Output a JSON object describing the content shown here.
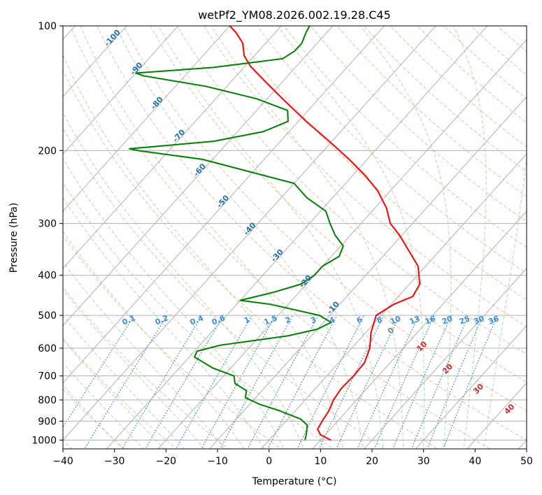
{
  "chart_data": {
    "type": "line",
    "chart_kind": "skew-t log-p",
    "title": "wetPf2_YM08.2026.002.19.28.C45",
    "xlabel": "Temperature (°C)",
    "ylabel": "Pressure (hPa)",
    "xlim": [
      -40,
      50
    ],
    "ylim": [
      1050,
      100
    ],
    "y_scale": "log",
    "grid": true,
    "x_ticks": [
      -40,
      -30,
      -20,
      -10,
      0,
      10,
      20,
      30,
      40,
      50
    ],
    "y_ticks": [
      100,
      200,
      300,
      400,
      500,
      600,
      700,
      800,
      900,
      1000
    ],
    "colors": {
      "temperature": "#ff0000",
      "dewpoint": "#008000",
      "isotherm": "#b0b0b0",
      "dry_adiabat": "#f4a582",
      "moist_adiabat": "#a6d9a6",
      "mixing_ratio": "#1f78d4",
      "isotherm_label": "#2171b5",
      "mixing_label": "#3a8fe0",
      "lcl_label_red": "#d62728",
      "lcl_label_grey": "#808080"
    },
    "series": [
      {
        "key": "temperature",
        "points": [
          [
            12.0,
            1000
          ],
          [
            9.0,
            970
          ],
          [
            7.5,
            940
          ],
          [
            7.0,
            900
          ],
          [
            6.5,
            850
          ],
          [
            5.5,
            800
          ],
          [
            5.0,
            750
          ],
          [
            5.2,
            700
          ],
          [
            5.0,
            650
          ],
          [
            3.5,
            600
          ],
          [
            1.0,
            550
          ],
          [
            -1.0,
            500
          ],
          [
            0.5,
            470
          ],
          [
            2.8,
            450
          ],
          [
            2.0,
            420
          ],
          [
            -1.5,
            380
          ],
          [
            -5.8,
            350
          ],
          [
            -10.5,
            320
          ],
          [
            -14.3,
            300
          ],
          [
            -17.8,
            275
          ],
          [
            -22.5,
            250
          ],
          [
            -27.5,
            230
          ],
          [
            -33.5,
            210
          ],
          [
            -40.5,
            190
          ],
          [
            -48.5,
            170
          ],
          [
            -57.0,
            150
          ],
          [
            -64.0,
            135
          ],
          [
            -69.0,
            125
          ],
          [
            -72.0,
            118
          ],
          [
            -74.5,
            110
          ],
          [
            -77.5,
            104
          ],
          [
            -80.0,
            100
          ]
        ]
      },
      {
        "key": "dewpoint",
        "points": [
          [
            7.0,
            1000
          ],
          [
            6.0,
            960
          ],
          [
            4.8,
            920
          ],
          [
            2.5,
            890
          ],
          [
            -3.0,
            850
          ],
          [
            -8.0,
            820
          ],
          [
            -12.0,
            790
          ],
          [
            -13.0,
            760
          ],
          [
            -16.5,
            730
          ],
          [
            -18.0,
            700
          ],
          [
            -23.5,
            670
          ],
          [
            -29.0,
            630
          ],
          [
            -29.5,
            610
          ],
          [
            -26.0,
            590
          ],
          [
            -14.5,
            560
          ],
          [
            -10.0,
            540
          ],
          [
            -8.5,
            520
          ],
          [
            -12.0,
            500
          ],
          [
            -23.5,
            470
          ],
          [
            -30.0,
            460
          ],
          [
            -25.0,
            440
          ],
          [
            -21.0,
            420
          ],
          [
            -20.0,
            400
          ],
          [
            -20.0,
            380
          ],
          [
            -18.5,
            360
          ],
          [
            -19.5,
            340
          ],
          [
            -23.0,
            320
          ],
          [
            -26.0,
            300
          ],
          [
            -29.0,
            280
          ],
          [
            -35.0,
            260
          ],
          [
            -40.0,
            240
          ],
          [
            -62.0,
            210
          ],
          [
            -76.0,
            200
          ],
          [
            -78.0,
            198
          ],
          [
            -63.0,
            190
          ],
          [
            -55.0,
            180
          ],
          [
            -52.0,
            170
          ],
          [
            -54.0,
            160
          ],
          [
            -62.0,
            150
          ],
          [
            -74.0,
            140
          ],
          [
            -88.0,
            132
          ],
          [
            -90.0,
            130
          ],
          [
            -76.0,
            126
          ],
          [
            -64.0,
            120
          ],
          [
            -63.0,
            115
          ],
          [
            -63.0,
            110
          ],
          [
            -64.0,
            104
          ],
          [
            -64.5,
            100
          ]
        ]
      }
    ],
    "isotherm_labels": [
      "-100",
      "-90",
      "-80",
      "-70",
      "-60",
      "-50",
      "-40",
      "-30",
      "-20",
      "-10"
    ],
    "mixing_ratio_labels": [
      "0.1",
      "0.2",
      "0.4",
      "0.6",
      "1",
      "1.5",
      "2",
      "3",
      "4",
      "6",
      "8",
      "10",
      "13",
      "16",
      "20",
      "25",
      "30",
      "36"
    ],
    "moist_adiabat_labels": [
      "0",
      "10",
      "20",
      "30",
      "40"
    ]
  }
}
